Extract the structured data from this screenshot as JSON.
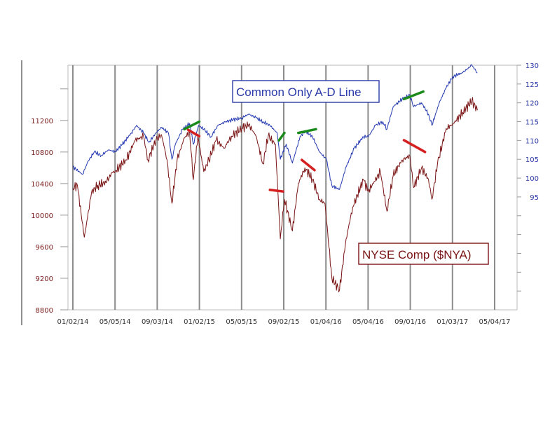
{
  "chart_data": {
    "type": "line",
    "x_tick_labels": [
      "01/02/14",
      "05/05/14",
      "09/03/14",
      "01/02/15",
      "05/05/15",
      "09/02/15",
      "01/04/16",
      "05/04/16",
      "09/01/16",
      "01/03/17",
      "05/04/17"
    ],
    "y_left": {
      "ticks": [
        8800,
        9200,
        9600,
        10000,
        10400,
        10800,
        11200
      ],
      "ylim": [
        8800,
        11900
      ],
      "color": "#7a1a1a"
    },
    "y_right": {
      "ticks": [
        95,
        100,
        105,
        110,
        115,
        120,
        125,
        130
      ],
      "ylim": [
        65,
        130
      ],
      "color": "#2a3aa8"
    },
    "grid": "vertical",
    "series": [
      {
        "name": "Common Only A-D Line",
        "axis": "right",
        "color": "#2238b0",
        "values": [
          [
            "01/02/14",
            103
          ],
          [
            "01/30/14",
            101
          ],
          [
            "02/15/14",
            104.5
          ],
          [
            "03/05/14",
            107
          ],
          [
            "03/25/14",
            106
          ],
          [
            "04/15/14",
            107.5
          ],
          [
            "05/05/14",
            107
          ],
          [
            "05/25/14",
            109
          ],
          [
            "06/20/14",
            112
          ],
          [
            "07/05/14",
            114
          ],
          [
            "07/25/14",
            112
          ],
          [
            "08/10/14",
            109.5
          ],
          [
            "08/30/14",
            112
          ],
          [
            "09/15/14",
            113.5
          ],
          [
            "10/05/14",
            112
          ],
          [
            "10/15/14",
            105
          ],
          [
            "10/25/14",
            109
          ],
          [
            "11/15/14",
            113
          ],
          [
            "12/05/14",
            114.5
          ],
          [
            "12/16/14",
            109
          ],
          [
            "12/31/14",
            114
          ],
          [
            "01/15/15",
            113
          ],
          [
            "02/05/15",
            111
          ],
          [
            "02/25/15",
            114
          ],
          [
            "03/20/15",
            115
          ],
          [
            "04/10/15",
            115.5
          ],
          [
            "05/05/15",
            116
          ],
          [
            "05/25/15",
            117
          ],
          [
            "06/15/15",
            116
          ],
          [
            "07/05/15",
            115
          ],
          [
            "07/25/15",
            114
          ],
          [
            "08/15/15",
            112
          ],
          [
            "08/24/15",
            105
          ],
          [
            "09/10/15",
            109
          ],
          [
            "09/28/15",
            104
          ],
          [
            "10/20/15",
            111
          ],
          [
            "11/05/15",
            112.5
          ],
          [
            "11/25/15",
            111
          ],
          [
            "12/15/15",
            107
          ],
          [
            "01/04/16",
            105
          ],
          [
            "01/20/16",
            98
          ],
          [
            "02/11/16",
            97
          ],
          [
            "03/01/16",
            103
          ],
          [
            "03/25/16",
            108
          ],
          [
            "04/20/16",
            111
          ],
          [
            "05/04/16",
            111
          ],
          [
            "05/25/16",
            114
          ],
          [
            "06/15/16",
            115
          ],
          [
            "06/27/16",
            113
          ],
          [
            "07/15/16",
            119
          ],
          [
            "08/10/16",
            121
          ],
          [
            "09/01/16",
            122
          ],
          [
            "09/12/16",
            119
          ],
          [
            "10/05/16",
            120
          ],
          [
            "10/25/16",
            117
          ],
          [
            "11/04/16",
            114
          ],
          [
            "11/25/16",
            120
          ],
          [
            "12/15/16",
            124
          ],
          [
            "01/03/17",
            127
          ],
          [
            "02/01/17",
            128
          ],
          [
            "02/27/17",
            130
          ],
          [
            "03/15/17",
            128
          ]
        ]
      },
      {
        "name": "NYSE Comp ($NYA)",
        "axis": "left",
        "color": "#7a1414",
        "values": [
          [
            "01/02/14",
            10340
          ],
          [
            "01/15/14",
            10380
          ],
          [
            "02/04/14",
            9720
          ],
          [
            "02/25/14",
            10290
          ],
          [
            "03/15/14",
            10380
          ],
          [
            "04/10/14",
            10420
          ],
          [
            "04/25/14",
            10540
          ],
          [
            "05/05/14",
            10560
          ],
          [
            "06/05/14",
            10700
          ],
          [
            "07/01/14",
            10950
          ],
          [
            "07/25/14",
            11000
          ],
          [
            "08/07/14",
            10700
          ],
          [
            "08/30/14",
            10950
          ],
          [
            "09/15/14",
            11020
          ],
          [
            "10/01/14",
            10700
          ],
          [
            "10/15/14",
            10150
          ],
          [
            "10/30/14",
            10700
          ],
          [
            "11/20/14",
            10980
          ],
          [
            "12/05/14",
            11050
          ],
          [
            "12/16/14",
            10450
          ],
          [
            "12/29/14",
            11000
          ],
          [
            "01/15/15",
            10550
          ],
          [
            "01/30/15",
            10700
          ],
          [
            "02/20/15",
            10950
          ],
          [
            "03/15/15",
            10850
          ],
          [
            "04/05/15",
            11000
          ],
          [
            "05/05/15",
            11100
          ],
          [
            "05/25/15",
            11150
          ],
          [
            "06/15/15",
            11000
          ],
          [
            "07/05/15",
            10650
          ],
          [
            "07/20/15",
            11000
          ],
          [
            "08/10/15",
            10900
          ],
          [
            "08/24/15",
            9700
          ],
          [
            "09/05/15",
            10200
          ],
          [
            "09/28/15",
            9800
          ],
          [
            "10/15/15",
            10400
          ],
          [
            "11/03/15",
            10600
          ],
          [
            "11/25/15",
            10450
          ],
          [
            "12/15/15",
            10200
          ],
          [
            "12/31/15",
            10150
          ],
          [
            "01/20/16",
            9200
          ],
          [
            "02/11/16",
            9050
          ],
          [
            "03/01/16",
            9700
          ],
          [
            "03/20/16",
            10100
          ],
          [
            "04/20/16",
            10450
          ],
          [
            "05/04/16",
            10300
          ],
          [
            "06/08/16",
            10550
          ],
          [
            "06/27/16",
            10050
          ],
          [
            "07/15/16",
            10500
          ],
          [
            "08/10/16",
            10700
          ],
          [
            "09/01/16",
            10750
          ],
          [
            "09/12/16",
            10350
          ],
          [
            "10/05/16",
            10600
          ],
          [
            "10/25/16",
            10450
          ],
          [
            "11/04/16",
            10200
          ],
          [
            "11/20/16",
            10650
          ],
          [
            "12/15/16",
            11100
          ],
          [
            "01/03/17",
            11150
          ],
          [
            "02/01/17",
            11300
          ],
          [
            "02/27/17",
            11450
          ],
          [
            "03/15/17",
            11330
          ]
        ]
      }
    ],
    "annotations": [
      {
        "text": "Common Only A-D Line",
        "color": "#2a3aa8",
        "series": "Common Only A-D Line"
      },
      {
        "text": "NYSE Comp ($NYA)",
        "color": "#7a1414",
        "series": "NYSE Comp ($NYA)"
      }
    ],
    "trend_marks": [
      {
        "color": "#1a8a1a",
        "axis": "right",
        "from": [
          "11/20/14",
          113
        ],
        "to": [
          "01/02/15",
          115
        ]
      },
      {
        "color": "#1a8a1a",
        "axis": "right",
        "from": [
          "08/20/15",
          110
        ],
        "to": [
          "09/05/15",
          112
        ]
      },
      {
        "color": "#1a8a1a",
        "axis": "right",
        "from": [
          "10/15/15",
          112
        ],
        "to": [
          "12/05/15",
          113
        ]
      },
      {
        "color": "#1a8a1a",
        "axis": "right",
        "from": [
          "08/15/16",
          121
        ],
        "to": [
          "10/10/16",
          123
        ]
      },
      {
        "color": "#d42020",
        "axis": "left",
        "from": [
          "12/01/14",
          11080
        ],
        "to": [
          "01/02/15",
          11000
        ]
      },
      {
        "color": "#d42020",
        "axis": "left",
        "from": [
          "07/25/15",
          10320
        ],
        "to": [
          "09/01/15",
          10300
        ]
      },
      {
        "color": "#d42020",
        "axis": "left",
        "from": [
          "10/25/15",
          10700
        ],
        "to": [
          "12/01/15",
          10570
        ]
      },
      {
        "color": "#d42020",
        "axis": "left",
        "from": [
          "08/15/16",
          10950
        ],
        "to": [
          "10/15/16",
          10800
        ]
      }
    ]
  }
}
